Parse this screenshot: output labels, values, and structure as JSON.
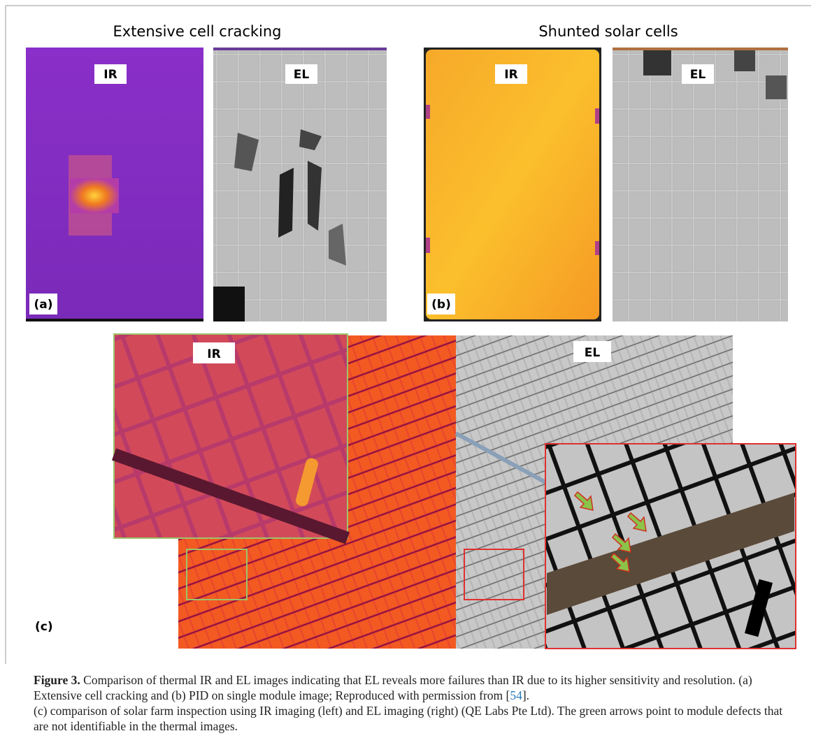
{
  "panels_top": [
    {
      "heading": "Extensive cell cracking",
      "ir_label": "IR",
      "el_label": "EL",
      "tag": "(a)"
    },
    {
      "heading": "Shunted solar cells",
      "ir_label": "IR",
      "el_label": "EL",
      "tag": "(b)"
    }
  ],
  "panel_c": {
    "ir_label": "IR",
    "el_label": "EL",
    "tag": "(c)"
  },
  "caption": {
    "label": "Figure 3.",
    "text_1": " Comparison of thermal IR and EL images indicating that EL reveals more failures than IR due to its higher sensitivity and resolution. (a) Extensive cell cracking and (b) PID on single module image; Reproduced with permission from [",
    "ref": "54",
    "text_2": "].",
    "text_3": "(c) comparison of solar farm inspection using IR imaging (left) and EL imaging (right) (QE Labs Pte Ltd). The green arrows point to module defects that are not identifiable in the thermal images."
  }
}
